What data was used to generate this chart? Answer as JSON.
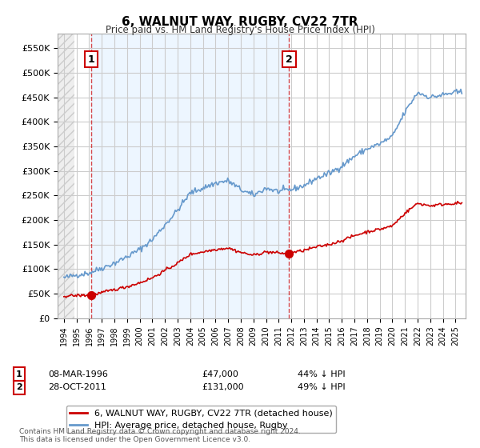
{
  "title": "6, WALNUT WAY, RUGBY, CV22 7TR",
  "subtitle": "Price paid vs. HM Land Registry's House Price Index (HPI)",
  "legend_line1": "6, WALNUT WAY, RUGBY, CV22 7TR (detached house)",
  "legend_line2": "HPI: Average price, detached house, Rugby",
  "footnote": "Contains HM Land Registry data © Crown copyright and database right 2024.\nThis data is licensed under the Open Government Licence v3.0.",
  "point1_label": "1",
  "point1_date": "08-MAR-1996",
  "point1_price": "£47,000",
  "point1_hpi": "44% ↓ HPI",
  "point1_year": 1996.17,
  "point1_value": 47000,
  "point2_label": "2",
  "point2_date": "28-OCT-2011",
  "point2_price": "£131,000",
  "point2_hpi": "49% ↓ HPI",
  "point2_year": 2011.83,
  "point2_value": 131000,
  "red_color": "#cc0000",
  "blue_color": "#6699cc",
  "bg_hatch_color": "#dddddd",
  "grid_color": "#cccccc",
  "highlight_bg": "#ddeeff",
  "ylim_min": 0,
  "ylim_max": 580000,
  "xlabel_start": 1994,
  "xlabel_end": 2025
}
